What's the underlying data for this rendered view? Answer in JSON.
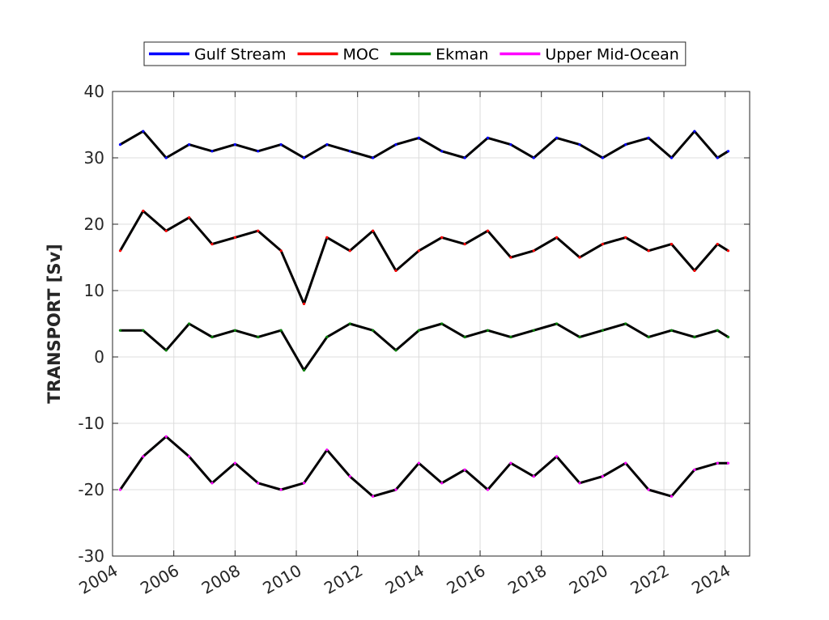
{
  "chart_data": {
    "type": "line",
    "title": "",
    "xlabel": "",
    "ylabel": "TRANSPORT [Sv]",
    "xlim": [
      2004,
      2024.8
    ],
    "ylim": [
      -30,
      40
    ],
    "xticks": [
      2004,
      2006,
      2008,
      2010,
      2012,
      2014,
      2016,
      2018,
      2020,
      2022,
      2024
    ],
    "yticks": [
      -30,
      -20,
      -10,
      0,
      10,
      20,
      30,
      40
    ],
    "grid": true,
    "legend": {
      "position": "top",
      "orientation": "horizontal"
    },
    "series": [
      {
        "name": "Gulf Stream",
        "color": "#0000ff",
        "x": [
          2004.25,
          2005.0,
          2005.75,
          2006.5,
          2007.25,
          2008.0,
          2008.75,
          2009.5,
          2010.25,
          2011.0,
          2011.75,
          2012.5,
          2013.25,
          2014.0,
          2014.75,
          2015.5,
          2016.25,
          2017.0,
          2017.75,
          2018.5,
          2019.25,
          2020.0,
          2020.75,
          2021.5,
          2022.25,
          2023.0,
          2023.75,
          2024.1
        ],
        "values": [
          32,
          34,
          30,
          32,
          31,
          32,
          31,
          32,
          30,
          32,
          31,
          30,
          32,
          33,
          31,
          30,
          33,
          32,
          30,
          33,
          32,
          30,
          32,
          33,
          30,
          34,
          30,
          31
        ]
      },
      {
        "name": "MOC",
        "color": "#ff0000",
        "x": [
          2004.25,
          2005.0,
          2005.75,
          2006.5,
          2007.25,
          2008.0,
          2008.75,
          2009.5,
          2010.25,
          2011.0,
          2011.75,
          2012.5,
          2013.25,
          2014.0,
          2014.75,
          2015.5,
          2016.25,
          2017.0,
          2017.75,
          2018.5,
          2019.25,
          2020.0,
          2020.75,
          2021.5,
          2022.25,
          2023.0,
          2023.75,
          2024.1
        ],
        "values": [
          16,
          22,
          19,
          21,
          17,
          18,
          19,
          16,
          8,
          18,
          16,
          19,
          13,
          16,
          18,
          17,
          19,
          15,
          16,
          18,
          15,
          17,
          18,
          16,
          17,
          13,
          17,
          16
        ]
      },
      {
        "name": "Ekman",
        "color": "#008000",
        "x": [
          2004.25,
          2005.0,
          2005.75,
          2006.5,
          2007.25,
          2008.0,
          2008.75,
          2009.5,
          2010.25,
          2011.0,
          2011.75,
          2012.5,
          2013.25,
          2014.0,
          2014.75,
          2015.5,
          2016.25,
          2017.0,
          2017.75,
          2018.5,
          2019.25,
          2020.0,
          2020.75,
          2021.5,
          2022.25,
          2023.0,
          2023.75,
          2024.1
        ],
        "values": [
          4,
          4,
          1,
          5,
          3,
          4,
          3,
          4,
          -2,
          3,
          5,
          4,
          1,
          4,
          5,
          3,
          4,
          3,
          4,
          5,
          3,
          4,
          5,
          3,
          4,
          3,
          4,
          3
        ]
      },
      {
        "name": "Upper Mid-Ocean",
        "color": "#ff00ff",
        "x": [
          2004.25,
          2005.0,
          2005.75,
          2006.5,
          2007.25,
          2008.0,
          2008.75,
          2009.5,
          2010.25,
          2011.0,
          2011.75,
          2012.5,
          2013.25,
          2014.0,
          2014.75,
          2015.5,
          2016.25,
          2017.0,
          2017.75,
          2018.5,
          2019.25,
          2020.0,
          2020.75,
          2021.5,
          2022.25,
          2023.0,
          2023.75,
          2024.1
        ],
        "values": [
          -20,
          -15,
          -12,
          -15,
          -19,
          -16,
          -19,
          -20,
          -19,
          -14,
          -18,
          -21,
          -20,
          -16,
          -19,
          -17,
          -20,
          -16,
          -18,
          -15,
          -19,
          -18,
          -16,
          -20,
          -21,
          -17,
          -16,
          -16
        ]
      }
    ]
  }
}
